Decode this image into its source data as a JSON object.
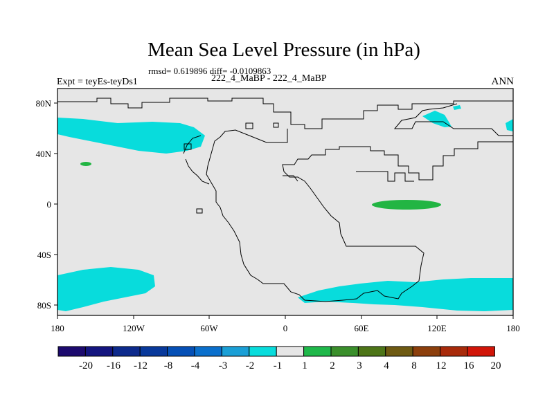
{
  "header": {
    "title": "Mean Sea Level Pressure (in hPa)",
    "stats": "rmsd= 0.619896 diff= -0.0109863",
    "experiment": "Expt = teyEs-teyDs1",
    "case": "222_4_MaBP - 222_4_MaBP",
    "season": "ANN"
  },
  "axes": {
    "lon_labels": [
      "180",
      "120W",
      "60W",
      "0",
      "60E",
      "120E",
      "180"
    ],
    "lat_labels": [
      "80N",
      "40N",
      "0",
      "40S",
      "80S"
    ]
  },
  "colorbar": {
    "labels": [
      "-20",
      "-16",
      "-12",
      "-8",
      "-4",
      "-3",
      "-2",
      "-1",
      "1",
      "2",
      "3",
      "4",
      "8",
      "12",
      "16",
      "20"
    ],
    "colors": [
      "#1c0a6e",
      "#14157f",
      "#0d2a8c",
      "#08399b",
      "#0550b6",
      "#0a6fcc",
      "#1a9fd6",
      "#08dcdc",
      "#e6e6e6",
      "#1fb84a",
      "#3a8f2b",
      "#4d7518",
      "#6e5a12",
      "#8c3f0c",
      "#a82a0a",
      "#d11508"
    ]
  },
  "colors": {
    "background": "#e6e6e6",
    "negative_anomaly": "#08dcdc",
    "positive_anomaly": "#22b543",
    "frame": "#000000"
  }
}
